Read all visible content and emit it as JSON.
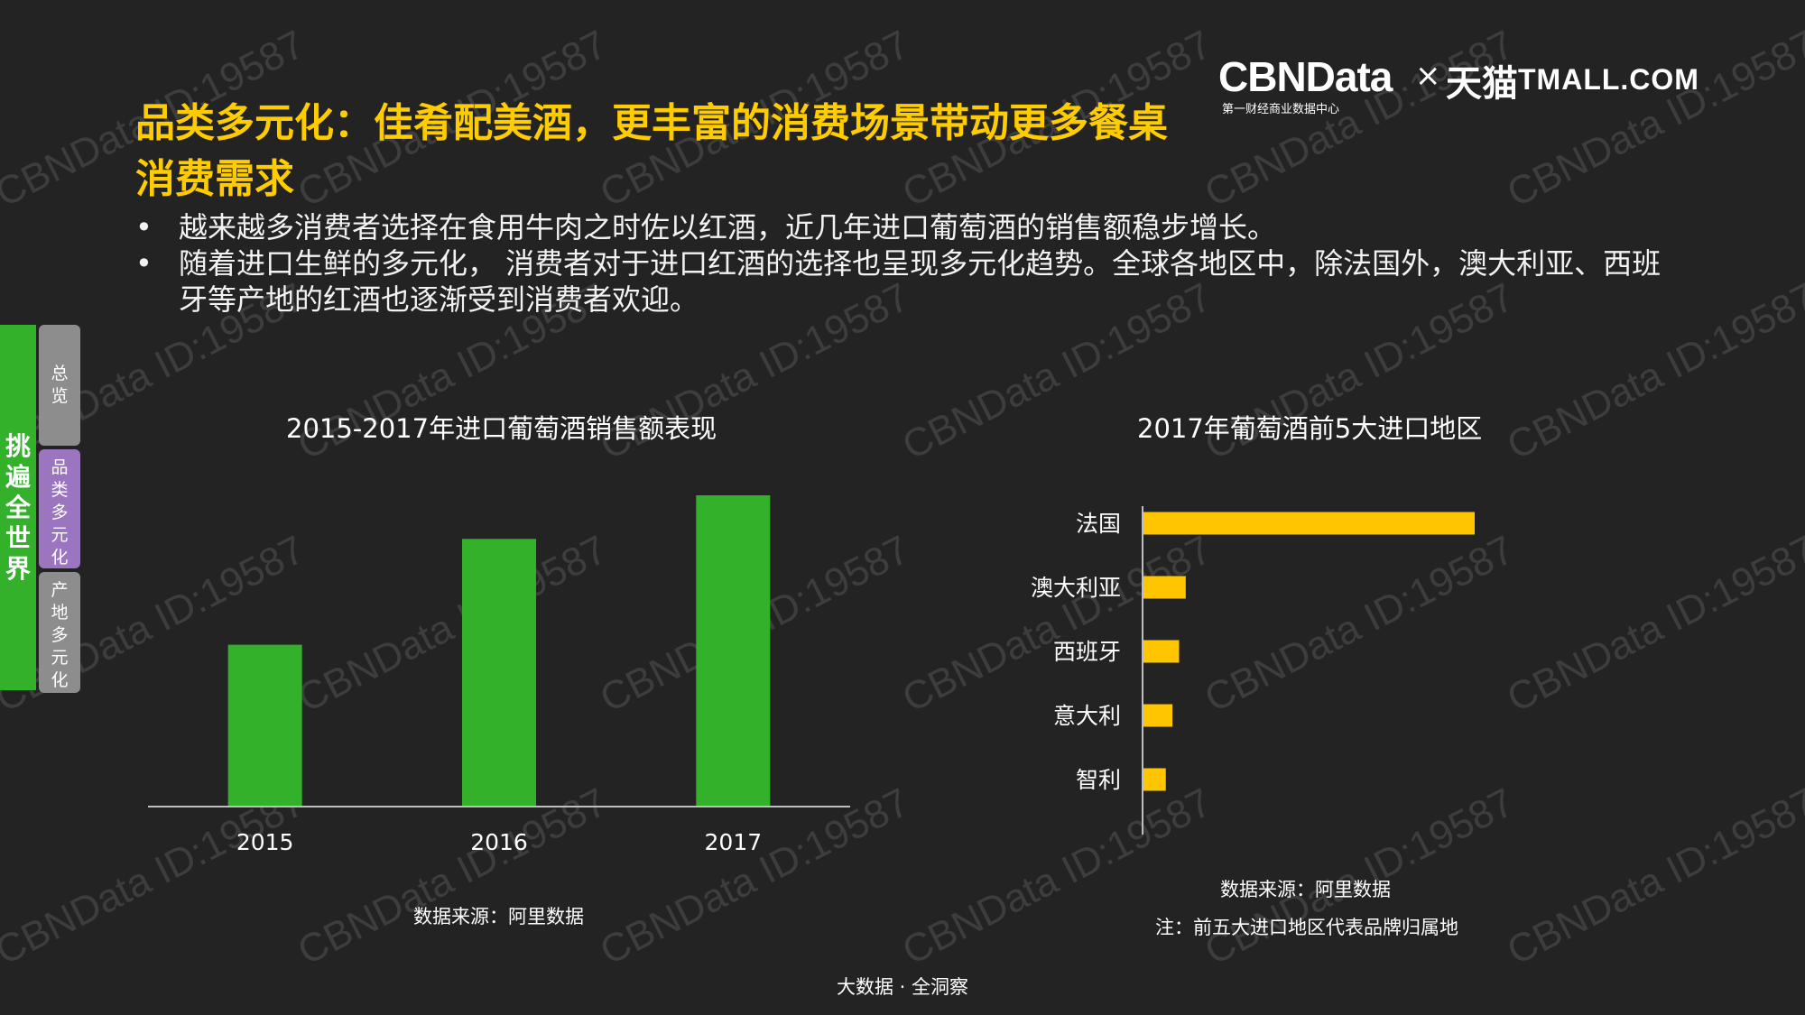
{
  "title": "品类多元化：佳肴配美酒，更丰富的消费场景带动更多餐桌消费需求",
  "bullets": [
    "越来越多消费者选择在食用牛肉之时佐以红酒，近几年进口葡萄酒的销售额稳步增长。",
    "随着进口生鲜的多元化， 消费者对于进口红酒的选择也呈现多元化趋势。全球各地区中，除法国外，澳大利亚、西班牙等产地的红酒也逐渐受到消费者欢迎。"
  ],
  "logo": {
    "cbn": "CBNData",
    "cbn_sub": "第一财经商业数据中心",
    "times": "×",
    "tmall_cn": "天猫",
    "tmall_en": "TMALL.COM"
  },
  "sidebar": {
    "main_label": "挑遍全世界",
    "tabs": [
      {
        "label": "总览"
      },
      {
        "label": "品类多元化"
      },
      {
        "label": "产地多元化"
      }
    ]
  },
  "watermark_text": "CBNData ID:19587",
  "colors": {
    "background": "#232323",
    "title": "#ffcc00",
    "bar_green": "#33b12a",
    "bar_yellow": "#ffc600",
    "tab_active": "#9b75c0",
    "tab_inactive": "#8d8d8d"
  },
  "chart_data": [
    {
      "type": "bar",
      "title": "2015-2017年进口葡萄酒销售额表现",
      "categories": [
        "2015",
        "2016",
        "2017"
      ],
      "values": [
        52,
        86,
        100
      ],
      "xlabel": "",
      "ylabel": "",
      "ylim": [
        0,
        100
      ],
      "grid": false,
      "source": "数据来源：阿里数据"
    },
    {
      "type": "bar",
      "orientation": "horizontal",
      "title": "2017年葡萄酒前5大进口地区",
      "categories": [
        "法国",
        "澳大利亚",
        "西班牙",
        "意大利",
        "智利"
      ],
      "values": [
        100,
        13,
        11,
        9,
        7
      ],
      "xlim": [
        0,
        100
      ],
      "grid": false,
      "source": "数据来源：阿里数据",
      "note": "注：前五大进口地区代表品牌归属地"
    }
  ],
  "footer": "大数据 · 全洞察"
}
